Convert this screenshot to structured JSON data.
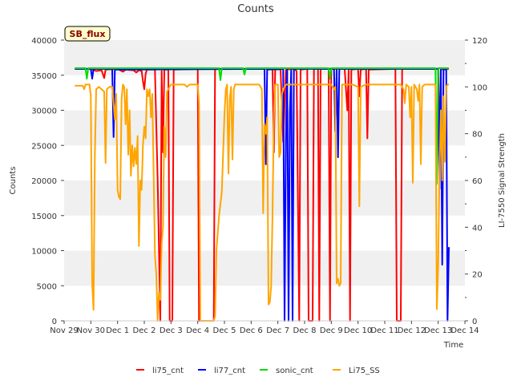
{
  "chart_data": {
    "type": "line",
    "title": "Counts",
    "annotation": "SB_flux",
    "xlabel": "Time",
    "ylabel": "Counts",
    "ylabel_right": "LI-7550 Signal Strength",
    "x_ticks": [
      {
        "x": 0,
        "label": "Nov 29"
      },
      {
        "x": 1,
        "label": "Nov 30"
      },
      {
        "x": 2,
        "label": "Dec 1"
      },
      {
        "x": 3,
        "label": "Dec 2"
      },
      {
        "x": 4,
        "label": "Dec 3"
      },
      {
        "x": 5,
        "label": "Dec 4"
      },
      {
        "x": 6,
        "label": "Dec 5"
      },
      {
        "x": 7,
        "label": "Dec 6"
      },
      {
        "x": 8,
        "label": "Dec 7"
      },
      {
        "x": 9,
        "label": "Dec 8"
      },
      {
        "x": 10,
        "label": "Dec 9"
      },
      {
        "x": 11,
        "label": "Dec 10"
      },
      {
        "x": 12,
        "label": "Dec 11"
      },
      {
        "x": 13,
        "label": "Dec 12"
      },
      {
        "x": 14,
        "label": "Dec 13"
      },
      {
        "x": 15,
        "label": "Dec 14"
      }
    ],
    "xlim": [
      0,
      15
    ],
    "ylim": [
      0,
      40000
    ],
    "y_ticks": [
      0,
      5000,
      10000,
      15000,
      20000,
      25000,
      30000,
      35000,
      40000
    ],
    "y_tick_labels": [
      "0",
      "5000",
      "10000",
      "15000",
      "20000",
      "25000",
      "30000",
      "35000",
      "40000"
    ],
    "ylim_right": [
      0,
      120
    ],
    "y_ticks_right": [
      0,
      20,
      40,
      60,
      80,
      100,
      120
    ],
    "y_tick_labels_right": [
      "0",
      "20",
      "40",
      "60",
      "80",
      "100",
      "120"
    ],
    "series": [
      {
        "name": "li75_cnt",
        "color": "#ff0000",
        "axis": "left",
        "points": [
          [
            0.4,
            35900
          ],
          [
            1.0,
            35900
          ],
          [
            1.2,
            35600
          ],
          [
            1.4,
            35700
          ],
          [
            1.5,
            34600
          ],
          [
            1.55,
            35800
          ],
          [
            2.0,
            35900
          ],
          [
            2.2,
            35500
          ],
          [
            2.3,
            35800
          ],
          [
            2.6,
            35700
          ],
          [
            2.7,
            35400
          ],
          [
            2.8,
            35700
          ],
          [
            2.9,
            35600
          ],
          [
            2.95,
            34200
          ],
          [
            3.0,
            33000
          ],
          [
            3.05,
            35200
          ],
          [
            3.1,
            35800
          ],
          [
            3.4,
            35800
          ],
          [
            3.5,
            20000
          ],
          [
            3.6,
            0
          ],
          [
            3.65,
            35600
          ],
          [
            3.7,
            24000
          ],
          [
            3.75,
            35800
          ],
          [
            3.9,
            35800
          ],
          [
            3.95,
            0
          ],
          [
            4.05,
            0
          ],
          [
            4.1,
            35800
          ],
          [
            5.0,
            35900
          ],
          [
            5.05,
            0
          ],
          [
            5.6,
            0
          ],
          [
            5.65,
            35900
          ],
          [
            7.0,
            35900
          ],
          [
            7.8,
            35900
          ],
          [
            7.85,
            24000
          ],
          [
            7.9,
            35800
          ],
          [
            8.1,
            35900
          ],
          [
            8.2,
            25500
          ],
          [
            8.3,
            35800
          ],
          [
            8.6,
            35900
          ],
          [
            8.7,
            35600
          ],
          [
            8.8,
            0
          ],
          [
            8.85,
            35800
          ],
          [
            9.1,
            35900
          ],
          [
            9.15,
            0
          ],
          [
            9.3,
            0
          ],
          [
            9.35,
            35900
          ],
          [
            9.5,
            35900
          ],
          [
            9.55,
            0
          ],
          [
            9.6,
            35900
          ],
          [
            9.9,
            35900
          ],
          [
            9.95,
            0
          ],
          [
            10.0,
            35900
          ],
          [
            10.5,
            35900
          ],
          [
            10.6,
            30000
          ],
          [
            10.65,
            35800
          ],
          [
            10.7,
            0
          ],
          [
            10.75,
            35800
          ],
          [
            11.0,
            35900
          ],
          [
            11.05,
            32000
          ],
          [
            11.1,
            35800
          ],
          [
            11.3,
            35900
          ],
          [
            11.35,
            26000
          ],
          [
            11.4,
            35800
          ],
          [
            12.4,
            35900
          ],
          [
            12.45,
            0
          ],
          [
            12.6,
            0
          ],
          [
            12.65,
            35900
          ],
          [
            14.0,
            35900
          ],
          [
            14.05,
            25500
          ],
          [
            14.1,
            35800
          ],
          [
            14.4,
            35900
          ]
        ]
      },
      {
        "name": "li77_cnt",
        "color": "#0000ff",
        "axis": "left",
        "points": [
          [
            0.4,
            35900
          ],
          [
            1.0,
            35900
          ],
          [
            1.05,
            34500
          ],
          [
            1.1,
            35900
          ],
          [
            1.8,
            35900
          ],
          [
            1.85,
            26200
          ],
          [
            1.9,
            35800
          ],
          [
            7.5,
            35900
          ],
          [
            7.55,
            22300
          ],
          [
            7.6,
            35800
          ],
          [
            8.2,
            35900
          ],
          [
            8.25,
            0
          ],
          [
            8.3,
            26000
          ],
          [
            8.35,
            35800
          ],
          [
            8.4,
            0
          ],
          [
            8.45,
            30000
          ],
          [
            8.5,
            35800
          ],
          [
            8.55,
            0
          ],
          [
            8.6,
            35900
          ],
          [
            10.1,
            35900
          ],
          [
            10.15,
            27000
          ],
          [
            10.2,
            35800
          ],
          [
            10.25,
            23300
          ],
          [
            10.3,
            35800
          ],
          [
            10.35,
            35900
          ],
          [
            14.0,
            35900
          ],
          [
            14.05,
            18800
          ],
          [
            14.1,
            35800
          ],
          [
            14.15,
            8000
          ],
          [
            14.2,
            35800
          ],
          [
            14.3,
            35900
          ],
          [
            14.35,
            0
          ],
          [
            14.4,
            10500
          ]
        ]
      },
      {
        "name": "sonic_cnt",
        "color": "#00dd00",
        "axis": "left",
        "points": [
          [
            0.4,
            36000
          ],
          [
            0.8,
            36000
          ],
          [
            0.85,
            34500
          ],
          [
            0.9,
            36000
          ],
          [
            5.8,
            36000
          ],
          [
            5.85,
            34300
          ],
          [
            5.9,
            36000
          ],
          [
            6.7,
            36000
          ],
          [
            6.75,
            35100
          ],
          [
            6.8,
            36000
          ],
          [
            9.9,
            36000
          ],
          [
            9.95,
            34500
          ],
          [
            10.0,
            36000
          ],
          [
            13.9,
            36000
          ],
          [
            13.95,
            19500
          ],
          [
            14.0,
            36000
          ],
          [
            14.4,
            36000
          ]
        ]
      },
      {
        "name": "Li75_SS",
        "color": "#ffa500",
        "axis": "right",
        "points": [
          [
            0.4,
            100.5
          ],
          [
            0.7,
            100.5
          ],
          [
            0.75,
            99
          ],
          [
            0.8,
            101
          ],
          [
            0.95,
            101
          ],
          [
            1.0,
            96
          ],
          [
            1.05,
            16
          ],
          [
            1.1,
            4.7
          ],
          [
            1.15,
            70
          ],
          [
            1.2,
            99
          ],
          [
            1.3,
            100
          ],
          [
            1.4,
            99
          ],
          [
            1.5,
            98
          ],
          [
            1.55,
            67.5
          ],
          [
            1.6,
            99
          ],
          [
            1.7,
            100
          ],
          [
            1.8,
            100
          ],
          [
            1.9,
            86
          ],
          [
            1.95,
            97
          ],
          [
            2.0,
            56
          ],
          [
            2.05,
            53
          ],
          [
            2.1,
            52
          ],
          [
            2.15,
            95
          ],
          [
            2.2,
            101
          ],
          [
            2.25,
            100
          ],
          [
            2.3,
            84
          ],
          [
            2.35,
            99
          ],
          [
            2.4,
            71
          ],
          [
            2.45,
            90
          ],
          [
            2.5,
            62
          ],
          [
            2.55,
            75
          ],
          [
            2.6,
            66
          ],
          [
            2.65,
            74
          ],
          [
            2.7,
            67
          ],
          [
            2.75,
            79
          ],
          [
            2.8,
            32
          ],
          [
            2.85,
            60
          ],
          [
            2.9,
            56
          ],
          [
            2.95,
            75
          ],
          [
            3.0,
            83
          ],
          [
            3.05,
            78
          ],
          [
            3.1,
            99
          ],
          [
            3.15,
            96
          ],
          [
            3.2,
            99
          ],
          [
            3.25,
            87
          ],
          [
            3.3,
            97
          ],
          [
            3.35,
            62
          ],
          [
            3.4,
            28
          ],
          [
            3.45,
            20
          ],
          [
            3.5,
            0
          ],
          [
            3.55,
            12
          ],
          [
            3.6,
            9
          ],
          [
            3.65,
            33
          ],
          [
            3.7,
            40
          ],
          [
            3.75,
            83
          ],
          [
            3.8,
            70
          ],
          [
            3.85,
            98
          ],
          [
            4.0,
            101
          ],
          [
            4.5,
            101
          ],
          [
            4.6,
            100
          ],
          [
            4.7,
            101
          ],
          [
            5.0,
            101
          ],
          [
            5.05,
            93
          ],
          [
            5.1,
            0
          ],
          [
            5.2,
            0
          ],
          [
            5.3,
            0
          ],
          [
            5.6,
            0
          ],
          [
            5.65,
            2
          ],
          [
            5.7,
            30
          ],
          [
            5.8,
            45
          ],
          [
            5.9,
            55
          ],
          [
            6.0,
            88
          ],
          [
            6.05,
            99
          ],
          [
            6.1,
            101
          ],
          [
            6.15,
            63
          ],
          [
            6.2,
            95
          ],
          [
            6.25,
            100
          ],
          [
            6.3,
            69
          ],
          [
            6.35,
            99
          ],
          [
            6.4,
            101
          ],
          [
            6.6,
            101
          ],
          [
            7.0,
            101
          ],
          [
            7.3,
            101
          ],
          [
            7.4,
            99
          ],
          [
            7.45,
            46
          ],
          [
            7.5,
            84
          ],
          [
            7.55,
            80
          ],
          [
            7.6,
            87
          ],
          [
            7.65,
            7
          ],
          [
            7.7,
            8
          ],
          [
            7.75,
            15
          ],
          [
            7.8,
            46
          ],
          [
            7.85,
            88
          ],
          [
            7.9,
            101
          ],
          [
            8.0,
            101
          ],
          [
            8.05,
            70
          ],
          [
            8.1,
            72
          ],
          [
            8.15,
            97
          ],
          [
            8.2,
            99
          ],
          [
            8.3,
            101
          ],
          [
            8.4,
            101
          ],
          [
            9.0,
            101
          ],
          [
            9.5,
            101
          ],
          [
            9.9,
            101
          ],
          [
            10.0,
            101
          ],
          [
            10.1,
            99
          ],
          [
            10.15,
            100
          ],
          [
            10.2,
            16
          ],
          [
            10.25,
            18
          ],
          [
            10.3,
            15
          ],
          [
            10.35,
            16
          ],
          [
            10.4,
            101
          ],
          [
            10.6,
            101
          ],
          [
            10.7,
            101
          ],
          [
            10.8,
            101
          ],
          [
            11.0,
            100
          ],
          [
            11.05,
            49
          ],
          [
            11.1,
            100
          ],
          [
            11.3,
            101
          ],
          [
            11.8,
            101
          ],
          [
            12.2,
            101
          ],
          [
            12.4,
            101
          ],
          [
            12.6,
            101
          ],
          [
            12.7,
            99
          ],
          [
            12.75,
            93
          ],
          [
            12.8,
            101
          ],
          [
            12.9,
            100
          ],
          [
            12.95,
            87
          ],
          [
            13.0,
            100
          ],
          [
            13.05,
            59
          ],
          [
            13.1,
            101
          ],
          [
            13.2,
            99
          ],
          [
            13.25,
            94
          ],
          [
            13.3,
            101
          ],
          [
            13.35,
            67
          ],
          [
            13.4,
            100
          ],
          [
            13.5,
            101
          ],
          [
            13.9,
            101
          ],
          [
            13.95,
            5
          ],
          [
            14.0,
            24
          ],
          [
            14.05,
            64
          ],
          [
            14.1,
            90
          ],
          [
            14.15,
            60
          ],
          [
            14.2,
            96
          ],
          [
            14.25,
            68
          ],
          [
            14.3,
            100
          ],
          [
            14.35,
            101
          ],
          [
            14.4,
            101
          ]
        ]
      }
    ],
    "legend_position": "bottom-center",
    "grid": "horizontal bands"
  }
}
